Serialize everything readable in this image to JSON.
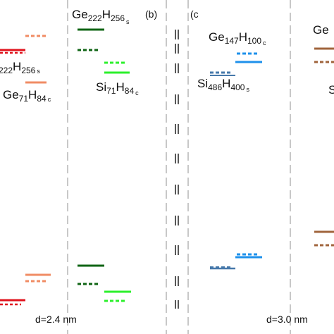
{
  "panels": {
    "left": {
      "labels": {
        "ge222_top": "222",
        "ge222_h": "H",
        "ge222_sub": "256",
        "ge222_s": "s",
        "ge71_main": "Ge",
        "ge71_sub1": "71",
        "ge71_h": "H",
        "ge71_sub2": "84",
        "ge71_c": "c"
      },
      "distance": "d=2.4 nm"
    },
    "b": {
      "tag": "(b)",
      "labels": {
        "ge_main": "Ge",
        "ge_sub1": "222",
        "ge_h": "H",
        "ge_sub2": "256",
        "ge_s": "s",
        "si_main": "Si",
        "si_sub1": "71",
        "si_h": "H",
        "si_sub2": "84",
        "si_c": "c"
      }
    },
    "c": {
      "tag": "(c",
      "labels": {
        "ge_main": "Ge",
        "ge_sub1": "147",
        "ge_h": "H",
        "ge_sub2": "100",
        "ge_c": "c",
        "si_main": "Si",
        "si_sub1": "486",
        "si_h": "H",
        "si_sub2": "400",
        "si_s": "s"
      },
      "distance": "d=3.0 nm"
    },
    "right": {
      "labels": {
        "ge_partial": "Ge",
        "si_partial": "S"
      }
    }
  },
  "colors": {
    "red": "#e0141e",
    "salmon": "#f08c64",
    "dark_green": "#0f6414",
    "light_green": "#2cf02c",
    "steel_blue": "#4678aa",
    "sky_blue": "#1e91eb",
    "brown": "#a0643c",
    "divider": "#aaaaaa"
  }
}
